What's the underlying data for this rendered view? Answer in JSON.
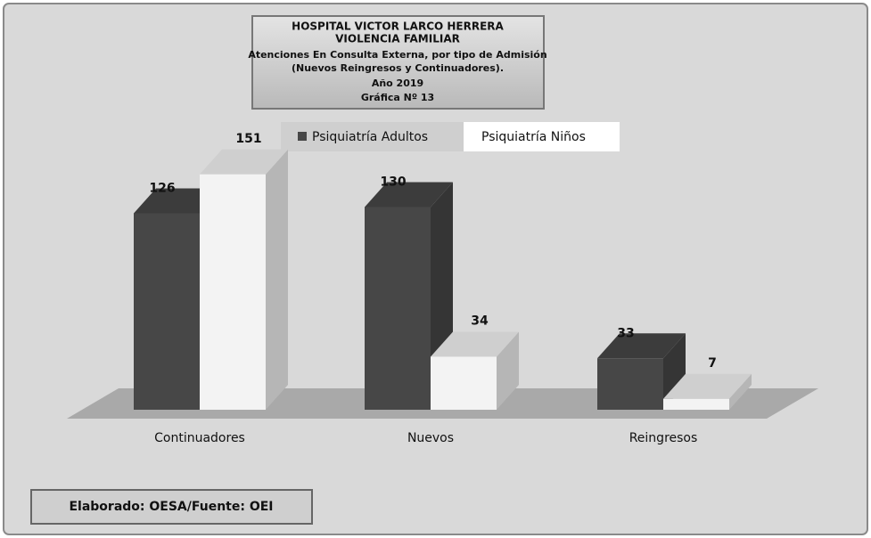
{
  "chart_data": {
    "type": "bar3d",
    "title": [
      "HOSPITAL VICTOR LARCO HERRERA",
      "VIOLENCIA FAMILIAR",
      "Atenciones En Consulta Externa, por tipo de Admisión",
      "(Nuevos Reingresos y Continuadores).",
      "Año 2019",
      "Gráfica Nº 13"
    ],
    "categories": [
      "Continuadores",
      "Nuevos",
      "Reingresos"
    ],
    "series": [
      {
        "name": "Psiquiatría Adultos",
        "color": "#474747",
        "values": [
          126,
          130,
          33
        ]
      },
      {
        "name": "Psiquiatría Niños",
        "color": "#f3f3f3",
        "values": [
          151,
          34,
          7
        ]
      }
    ],
    "footer": "Elaborado: OESA/Fuente: OEI"
  }
}
